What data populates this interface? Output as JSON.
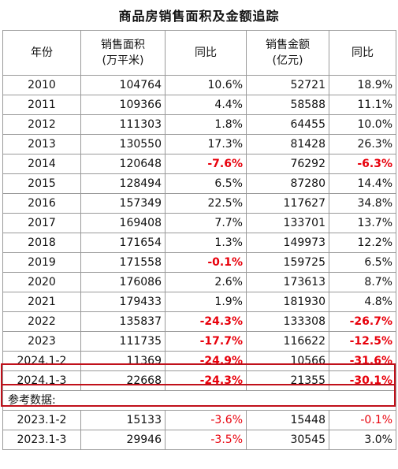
{
  "title": "商品房销售面积及金额追踪",
  "columns": [
    {
      "line1": "年份",
      "line2": ""
    },
    {
      "line1": "销售面积",
      "line2": "(万平米)"
    },
    {
      "line1": "同比",
      "line2": ""
    },
    {
      "line1": "销售金额",
      "line2": "(亿元)"
    },
    {
      "line1": "同比",
      "line2": ""
    }
  ],
  "rows": [
    {
      "year": "2010",
      "area": "104764",
      "area_yoy": "10.6%",
      "amount": "52721",
      "amount_yoy": "18.9%"
    },
    {
      "year": "2011",
      "area": "109366",
      "area_yoy": "4.4%",
      "amount": "58588",
      "amount_yoy": "11.1%"
    },
    {
      "year": "2012",
      "area": "111303",
      "area_yoy": "1.8%",
      "amount": "64455",
      "amount_yoy": "10.0%"
    },
    {
      "year": "2013",
      "area": "130550",
      "area_yoy": "17.3%",
      "amount": "81428",
      "amount_yoy": "26.3%"
    },
    {
      "year": "2014",
      "area": "120648",
      "area_yoy": "-7.6%",
      "amount": "76292",
      "amount_yoy": "-6.3%"
    },
    {
      "year": "2015",
      "area": "128494",
      "area_yoy": "6.5%",
      "amount": "87280",
      "amount_yoy": "14.4%"
    },
    {
      "year": "2016",
      "area": "157349",
      "area_yoy": "22.5%",
      "amount": "117627",
      "amount_yoy": "34.8%"
    },
    {
      "year": "2017",
      "area": "169408",
      "area_yoy": "7.7%",
      "amount": "133701",
      "amount_yoy": "13.7%"
    },
    {
      "year": "2018",
      "area": "171654",
      "area_yoy": "1.3%",
      "amount": "149973",
      "amount_yoy": "12.2%"
    },
    {
      "year": "2019",
      "area": "171558",
      "area_yoy": "-0.1%",
      "amount": "159725",
      "amount_yoy": "6.5%"
    },
    {
      "year": "2020",
      "area": "176086",
      "area_yoy": "2.6%",
      "amount": "173613",
      "amount_yoy": "8.7%"
    },
    {
      "year": "2021",
      "area": "179433",
      "area_yoy": "1.9%",
      "amount": "181930",
      "amount_yoy": "4.8%"
    },
    {
      "year": "2022",
      "area": "135837",
      "area_yoy": "-24.3%",
      "amount": "133308",
      "amount_yoy": "-26.7%"
    },
    {
      "year": "2023",
      "area": "111735",
      "area_yoy": "-17.7%",
      "amount": "116622",
      "amount_yoy": "-12.5%"
    },
    {
      "year": "2024.1-2",
      "area": "11369",
      "area_yoy": "-24.9%",
      "amount": "10566",
      "amount_yoy": "-31.6%"
    },
    {
      "year": "2024.1-3",
      "area": "22668",
      "area_yoy": "-24.3%",
      "amount": "21355",
      "amount_yoy": "-30.1%"
    }
  ],
  "reference_label": "参考数据:",
  "reference_rows": [
    {
      "year": "2023.1-2",
      "area": "15133",
      "area_yoy": "-3.6%",
      "amount": "15448",
      "amount_yoy": "-0.1%"
    },
    {
      "year": "2023.1-3",
      "area": "29946",
      "area_yoy": "-3.5%",
      "amount": "30545",
      "amount_yoy": "3.0%"
    }
  ],
  "colors": {
    "negative": "#e8000b",
    "highlight_border": "#c0101a",
    "grid_line": "#9a9a9a"
  }
}
